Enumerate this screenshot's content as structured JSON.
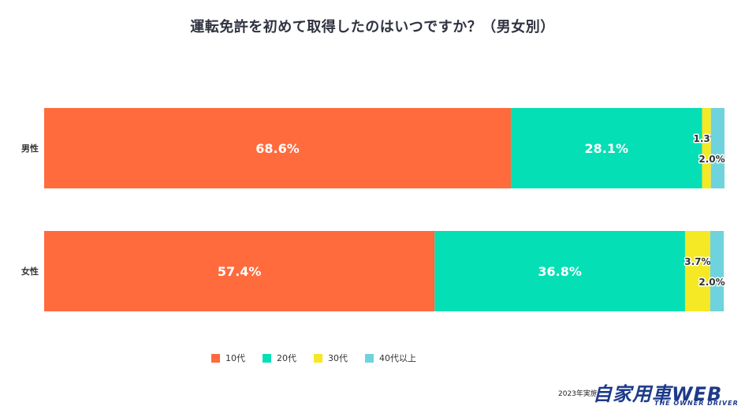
{
  "chart_data": {
    "type": "bar",
    "orientation": "horizontal",
    "stacked": true,
    "title": "運転免許を初めて取得したのはいつですか？（男女別）",
    "categories": [
      "男性",
      "女性"
    ],
    "xlim": [
      0,
      100
    ],
    "grid": false,
    "legend_position": "bottom",
    "series": [
      {
        "name": "10代",
        "color": "#ff6b3d",
        "values": [
          68.6,
          57.4
        ],
        "labels": [
          "68.6%",
          "57.4%"
        ]
      },
      {
        "name": "20代",
        "color": "#05dfb5",
        "values": [
          28.1,
          36.8
        ],
        "labels": [
          "28.1%",
          "36.8%"
        ]
      },
      {
        "name": "30代",
        "color": "#f5e824",
        "values": [
          1.3,
          3.7
        ],
        "labels": [
          "1.3%",
          "3.7%"
        ]
      },
      {
        "name": "40代以上",
        "color": "#6fd3dd",
        "values": [
          2.0,
          2.0
        ],
        "labels": [
          "2.0%",
          "2.0%"
        ]
      }
    ]
  },
  "source_text": "2023年実施",
  "logo": {
    "main": "自家用車WEB",
    "sub": "THE OWNER DRIVER"
  }
}
